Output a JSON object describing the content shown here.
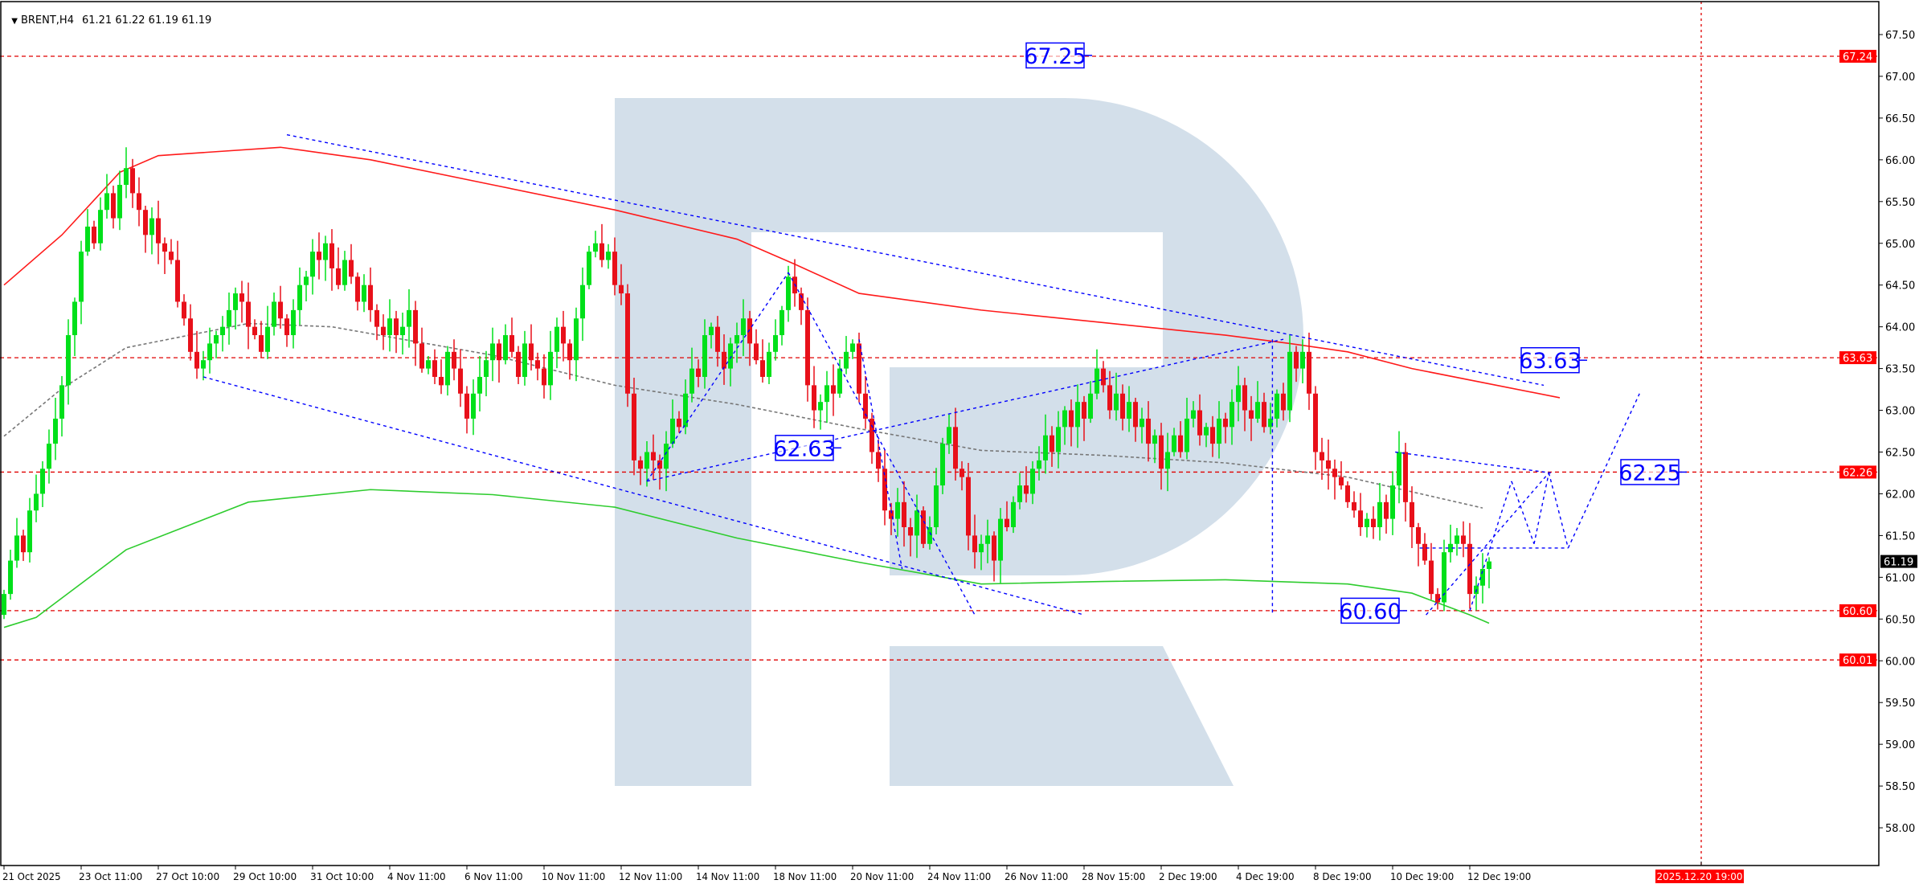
{
  "header": {
    "menu_icon": "triangle-down-icon",
    "symbol_label": "BRENT,H4",
    "ohlc": "61.21 61.22 61.19 61.19"
  },
  "chart_data": {
    "type": "candlestick",
    "symbol": "BRENT",
    "timeframe": "H4",
    "ylim": [
      57.8,
      67.75
    ],
    "grid": false,
    "colors": {
      "bull": "#00e01a",
      "bear": "#e8101a",
      "level_line": "#e00000",
      "annotation": "#0000ff",
      "watermark": "#d3dfea"
    },
    "y_tick_labels": [
      "67.50",
      "67.00",
      "66.50",
      "66.00",
      "65.50",
      "65.00",
      "64.50",
      "64.00",
      "63.50",
      "63.00",
      "62.50",
      "62.00",
      "61.50",
      "61.00",
      "60.50",
      "60.00",
      "59.50",
      "59.00",
      "58.50",
      "58.00"
    ],
    "x_tick_labels": [
      "21 Oct 2025",
      "23 Oct 11:00",
      "27 Oct 10:00",
      "29 Oct 10:00",
      "31 Oct 10:00",
      "4 Nov 11:00",
      "6 Nov 11:00",
      "10 Nov 11:00",
      "12 Nov 11:00",
      "14 Nov 11:00",
      "18 Nov 11:00",
      "20 Nov 11:00",
      "24 Nov 11:00",
      "26 Nov 11:00",
      "28 Nov 15:00",
      "2 Dec 19:00",
      "4 Dec 19:00",
      "8 Dec 19:00",
      "10 Dec 19:00",
      "12 Dec 19:00"
    ],
    "close": [
      60.8,
      61.2,
      61.5,
      61.3,
      61.8,
      62.0,
      62.3,
      62.6,
      62.9,
      63.3,
      63.9,
      64.3,
      64.9,
      65.2,
      65.0,
      65.4,
      65.6,
      65.3,
      65.7,
      65.9,
      65.6,
      65.4,
      65.1,
      65.3,
      65.0,
      64.9,
      64.8,
      64.3,
      64.1,
      63.7,
      63.5,
      63.6,
      63.8,
      63.9,
      64.0,
      64.2,
      64.4,
      64.3,
      64.0,
      63.9,
      63.7,
      64.0,
      64.3,
      64.1,
      63.9,
      64.2,
      64.5,
      64.6,
      64.9,
      64.8,
      65.0,
      64.7,
      64.5,
      64.8,
      64.6,
      64.3,
      64.5,
      64.2,
      64.0,
      63.9,
      64.1,
      63.9,
      64.0,
      64.2,
      63.8,
      63.5,
      63.6,
      63.4,
      63.3,
      63.7,
      63.5,
      63.2,
      62.9,
      63.2,
      63.4,
      63.6,
      63.8,
      63.6,
      63.9,
      63.7,
      63.4,
      63.8,
      63.6,
      63.5,
      63.3,
      63.7,
      64.0,
      63.8,
      63.6,
      64.1,
      64.5,
      64.9,
      65.0,
      64.8,
      64.9,
      64.5,
      64.4,
      63.2,
      62.4,
      62.3,
      62.5,
      62.4,
      62.3,
      62.6,
      62.9,
      62.8,
      63.2,
      63.5,
      63.4,
      63.9,
      64.0,
      63.7,
      63.5,
      63.8,
      63.9,
      64.1,
      63.8,
      63.6,
      63.4,
      63.7,
      63.9,
      64.2,
      64.6,
      64.4,
      64.2,
      63.3,
      63.0,
      63.1,
      63.3,
      63.2,
      63.5,
      63.7,
      63.8,
      63.2,
      62.9,
      62.5,
      62.3,
      61.8,
      61.7,
      61.9,
      61.6,
      61.5,
      61.8,
      61.4,
      61.6,
      62.1,
      62.6,
      62.8,
      62.3,
      62.2,
      61.5,
      61.3,
      61.4,
      61.5,
      61.2,
      61.7,
      61.6,
      61.9,
      62.1,
      62.0,
      62.3,
      62.4,
      62.7,
      62.5,
      62.8,
      63.0,
      62.8,
      63.1,
      62.9,
      63.2,
      63.5,
      63.3,
      63.0,
      63.2,
      62.9,
      63.1,
      62.8,
      62.9,
      62.6,
      62.7,
      62.3,
      62.5,
      62.7,
      62.5,
      62.9,
      63.0,
      62.7,
      62.8,
      62.6,
      62.9,
      62.8,
      63.1,
      63.3,
      63.0,
      62.9,
      63.1,
      62.8,
      62.9,
      63.2,
      63.0,
      63.7,
      63.5,
      63.7,
      63.2,
      62.5,
      62.4,
      62.3,
      62.2,
      62.1,
      61.9,
      61.8,
      61.6,
      61.7,
      61.6,
      61.9,
      61.7,
      62.1,
      62.5,
      61.9,
      61.6,
      61.4,
      61.2,
      60.8,
      60.7,
      61.3,
      61.4,
      61.5,
      61.4,
      60.8,
      60.9,
      61.1,
      61.19
    ],
    "indicators": [
      {
        "color": "#ff1a1a",
        "style": "solid",
        "points": [
          [
            0,
            64.5
          ],
          [
            9,
            65.1
          ],
          [
            18,
            65.85
          ],
          [
            24,
            66.05
          ],
          [
            43,
            66.15
          ],
          [
            57,
            66.0
          ],
          [
            76,
            65.7
          ],
          [
            95,
            65.4
          ],
          [
            114,
            65.05
          ],
          [
            123,
            64.75
          ],
          [
            133,
            64.4
          ],
          [
            152,
            64.2
          ],
          [
            171,
            64.05
          ],
          [
            190,
            63.9
          ],
          [
            200,
            63.8
          ],
          [
            209,
            63.7
          ],
          [
            219,
            63.5
          ],
          [
            242,
            63.15
          ]
        ]
      },
      {
        "color": "#2ecc2e",
        "style": "solid",
        "points": [
          [
            0,
            60.4
          ],
          [
            5,
            60.52
          ],
          [
            19,
            61.33
          ],
          [
            38,
            61.9
          ],
          [
            57,
            62.05
          ],
          [
            76,
            61.99
          ],
          [
            95,
            61.84
          ],
          [
            114,
            61.47
          ],
          [
            133,
            61.18
          ],
          [
            152,
            60.92
          ],
          [
            171,
            60.95
          ],
          [
            190,
            60.97
          ],
          [
            209,
            60.92
          ],
          [
            219,
            60.81
          ],
          [
            228,
            60.55
          ],
          [
            231,
            60.45
          ]
        ]
      },
      {
        "color": "#777777",
        "style": "dotted",
        "points": [
          [
            0,
            62.69
          ],
          [
            9,
            63.26
          ],
          [
            19,
            63.75
          ],
          [
            38,
            64.04
          ],
          [
            51,
            64.0
          ],
          [
            76,
            63.66
          ],
          [
            95,
            63.3
          ],
          [
            114,
            63.07
          ],
          [
            133,
            62.78
          ],
          [
            152,
            62.52
          ],
          [
            171,
            62.46
          ],
          [
            190,
            62.37
          ],
          [
            209,
            62.2
          ],
          [
            230,
            61.83
          ]
        ]
      }
    ],
    "horizontal_levels": [
      "67.24",
      "63.63",
      "62.26",
      "60.60",
      "60.01"
    ],
    "current_price": "61.19",
    "cursor_date_label": "2025.12.20 19:00",
    "cursor_bar": 264,
    "annotation_lines": [
      {
        "from": [
          44,
          66.3
        ],
        "to": [
          239.5,
          63.3
        ]
      },
      {
        "from": [
          31,
          63.4
        ],
        "to": [
          168,
          60.55
        ]
      },
      {
        "from": [
          100,
          62.15
        ],
        "to": [
          199,
          63.85
        ]
      },
      {
        "from": [
          100,
          62.15
        ],
        "to": [
          122,
          64.65
        ]
      },
      {
        "from": [
          122,
          64.65
        ],
        "to": [
          151,
          60.55
        ]
      },
      {
        "from": [
          133,
          63.85
        ],
        "to": [
          139.7,
          61.1
        ]
      },
      {
        "from": [
          197.3,
          63.85
        ],
        "to": [
          197.3,
          60.55
        ]
      },
      {
        "from": [
          216.4,
          62.5
        ],
        "to": [
          240.6,
          62.25
        ]
      },
      {
        "from": [
          220.2,
          61.35
        ],
        "to": [
          243.3,
          61.35
        ]
      },
      {
        "from": [
          221.2,
          60.55
        ],
        "to": [
          240.3,
          62.25
        ]
      },
      {
        "from": [
          228,
          60.6
        ],
        "to": [
          234.5,
          62.15
        ]
      },
      {
        "from": [
          234.5,
          62.15
        ],
        "to": [
          238,
          61.4
        ]
      },
      {
        "from": [
          238,
          61.4
        ],
        "to": [
          240.3,
          62.25
        ]
      },
      {
        "from": [
          240.3,
          62.25
        ],
        "to": [
          243.3,
          61.35
        ]
      },
      {
        "from": [
          243.3,
          61.35
        ],
        "to": [
          254.4,
          63.2
        ]
      }
    ],
    "annotation_labels": [
      {
        "text": "67.25",
        "bar": 168,
        "price": 67.25
      },
      {
        "text": "62.63",
        "bar": 129,
        "price": 62.55
      },
      {
        "text": "63.63",
        "bar": 245,
        "price": 63.6
      },
      {
        "text": "62.25",
        "bar": 260.5,
        "price": 62.26
      },
      {
        "text": "60.60",
        "bar": 217,
        "price": 60.6
      }
    ]
  }
}
